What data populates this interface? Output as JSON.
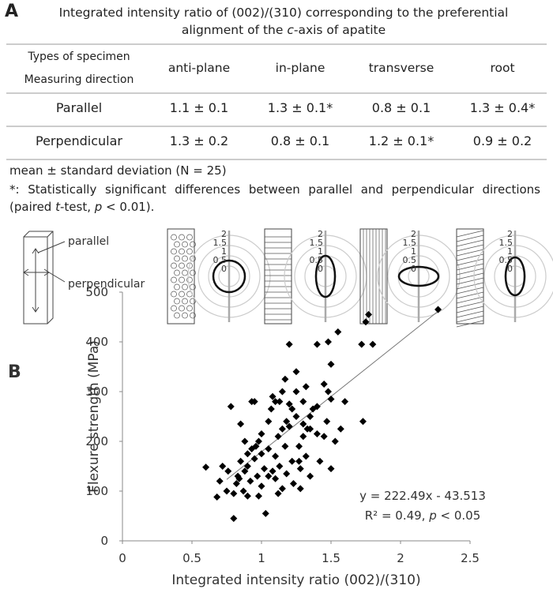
{
  "panel_a": {
    "label": "A",
    "title_parts": [
      "Integrated intensity ratio of (002)/(310) corresponding to the preferential alignment of the ",
      "c",
      "-axis of apatite"
    ],
    "table": {
      "corner": [
        "Types of specimen",
        "Measuring direction"
      ],
      "columns": [
        "anti-plane",
        "in-plane",
        "transverse",
        "root"
      ],
      "rows": [
        [
          "Parallel",
          "1.1 ± 0.1",
          "1.3 ± 0.1*",
          "0.8 ± 0.1",
          "1.3 ± 0.4*"
        ],
        [
          "Perpendicular",
          "1.3 ± 0.2",
          "0.8 ± 0.1",
          "1.2 ± 0.1*",
          "0.9 ± 0.2"
        ]
      ]
    },
    "note_1": "mean ± standard deviation (N = 25)",
    "note_2_parts": [
      "*: Statistically significant differences between parallel and perpendicular directions (paired ",
      "t",
      "-test, ",
      "p",
      " < 0.01)."
    ],
    "diagram": {
      "parallel": "parallel",
      "perpendicular": "perpendicular",
      "polar_labels": [
        "2",
        "1.5",
        "1",
        "0.5",
        "0"
      ]
    }
  },
  "chart_data": {
    "type": "scatter",
    "label": "B",
    "xlabel": "Integrated intensity ratio (002)/(310)",
    "ylabel": "Flexure strength (MPa)",
    "color": "#000000",
    "x": [
      0.6,
      0.68,
      0.7,
      0.72,
      0.75,
      0.76,
      0.78,
      0.8,
      0.8,
      0.82,
      0.83,
      0.85,
      0.85,
      0.87,
      0.88,
      0.9,
      0.9,
      0.92,
      0.93,
      0.95,
      0.95,
      0.97,
      0.98,
      1.0,
      1.0,
      1.02,
      1.03,
      1.05,
      1.05,
      1.08,
      1.1,
      1.1,
      1.12,
      1.13,
      1.15,
      1.15,
      1.17,
      1.18,
      1.2,
      1.2,
      1.2,
      1.22,
      1.23,
      1.25,
      1.25,
      1.27,
      1.28,
      1.28,
      1.3,
      1.3,
      1.32,
      1.33,
      1.35,
      1.35,
      1.37,
      1.4,
      1.4,
      1.42,
      1.45,
      1.47,
      1.48,
      1.5,
      1.5,
      1.5,
      1.53,
      1.55,
      1.57,
      1.6,
      1.72,
      1.73,
      1.75,
      1.77,
      1.8,
      2.27,
      1.07,
      1.13,
      1.17,
      0.93,
      1.0,
      0.96,
      1.05,
      1.12,
      1.25,
      1.22,
      1.08,
      0.88,
      1.3,
      1.35,
      1.27,
      1.15,
      1.45,
      1.48,
      1.18,
      1.4,
      0.98,
      1.1,
      1.32,
      0.9,
      0.84
    ],
    "values": [
      148,
      88,
      120,
      150,
      100,
      140,
      270,
      45,
      95,
      115,
      130,
      235,
      160,
      100,
      140,
      175,
      150,
      120,
      185,
      165,
      280,
      130,
      200,
      110,
      215,
      145,
      55,
      185,
      130,
      290,
      280,
      170,
      210,
      150,
      105,
      225,
      190,
      135,
      395,
      275,
      230,
      160,
      115,
      300,
      250,
      190,
      145,
      105,
      210,
      280,
      170,
      225,
      250,
      130,
      265,
      395,
      215,
      160,
      210,
      240,
      400,
      355,
      285,
      145,
      200,
      420,
      225,
      280,
      395,
      240,
      440,
      455,
      395,
      465,
      265,
      280,
      325,
      280,
      175,
      190,
      240,
      95,
      340,
      265,
      140,
      200,
      235,
      225,
      160,
      300,
      315,
      300,
      240,
      270,
      90,
      125,
      310,
      90,
      125
    ],
    "xlim": [
      0,
      2.5
    ],
    "xticks": [
      0,
      0.5,
      1,
      1.5,
      2,
      2.5
    ],
    "ylim": [
      0,
      500
    ],
    "yticks": [
      0,
      100,
      200,
      300,
      400,
      500
    ],
    "trendline": {
      "slope": 222.49,
      "intercept": -43.513,
      "x_range": [
        0.75,
        2.27
      ]
    },
    "annotation_1": "y = 222.49x - 43.513",
    "annotation_2_parts": [
      "R² = 0.49, ",
      "p",
      " < 0.05"
    ]
  }
}
